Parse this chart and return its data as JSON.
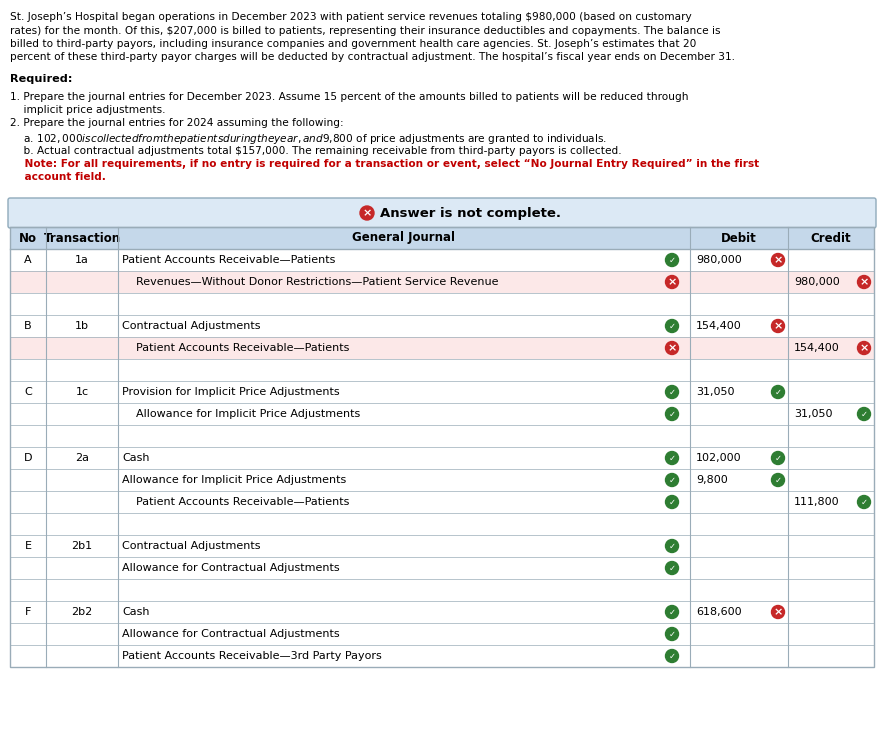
{
  "para_lines": [
    "St. Joseph’s Hospital began operations in December 2023 with patient service revenues totaling $980,000 (based on customary",
    "rates) for the month. Of this, $207,000 is billed to patients, representing their insurance deductibles and copayments. The balance is",
    "billed to third-party payors, including insurance companies and government health care agencies. St. Joseph’s estimates that 20",
    "percent of these third-party payor charges will be deducted by contractual adjustment. The hospital’s fiscal year ends on December 31."
  ],
  "req1_lines": [
    "1. Prepare the journal entries for December 2023. Assume 15 percent of the amounts billed to patients will be reduced through",
    "    implicit price adjustments."
  ],
  "req2_lines": [
    "2. Prepare the journal entries for 2024 assuming the following:",
    "    a. $102,000 is collected from the patients during the year, and $9,800 of price adjustments are granted to individuals.",
    "    b. Actual contractual adjustments total $157,000. The remaining receivable from third-party payors is collected."
  ],
  "note_lines": [
    "    Note: For all requirements, if no entry is required for a transaction or event, select “No Journal Entry Required” in the first",
    "    account field."
  ],
  "rows": [
    {
      "no": "A",
      "trans": "1a",
      "journal": "Patient Accounts Receivable—Patients",
      "debit": "980,000",
      "credit": "",
      "indent": false,
      "debit_icon": "x_red",
      "credit_icon": null,
      "journal_icon": "check_green",
      "row_bg": "white"
    },
    {
      "no": "",
      "trans": "",
      "journal": "Revenues—Without Donor Restrictions—Patient Service Revenue",
      "debit": "",
      "credit": "980,000",
      "indent": true,
      "debit_icon": null,
      "credit_icon": "x_red",
      "journal_icon": "x_red",
      "row_bg": "light_red"
    },
    {
      "no": "",
      "trans": "",
      "journal": "",
      "debit": "",
      "credit": "",
      "indent": false,
      "debit_icon": null,
      "credit_icon": null,
      "journal_icon": null,
      "row_bg": "white"
    },
    {
      "no": "B",
      "trans": "1b",
      "journal": "Contractual Adjustments",
      "debit": "154,400",
      "credit": "",
      "indent": false,
      "debit_icon": "x_red",
      "credit_icon": null,
      "journal_icon": "check_green",
      "row_bg": "white"
    },
    {
      "no": "",
      "trans": "",
      "journal": "Patient Accounts Receivable—Patients",
      "debit": "",
      "credit": "154,400",
      "indent": true,
      "debit_icon": null,
      "credit_icon": "x_red",
      "journal_icon": "x_red",
      "row_bg": "light_red"
    },
    {
      "no": "",
      "trans": "",
      "journal": "",
      "debit": "",
      "credit": "",
      "indent": false,
      "debit_icon": null,
      "credit_icon": null,
      "journal_icon": null,
      "row_bg": "white"
    },
    {
      "no": "C",
      "trans": "1c",
      "journal": "Provision for Implicit Price Adjustments",
      "debit": "31,050",
      "credit": "",
      "indent": false,
      "debit_icon": "check_green",
      "credit_icon": null,
      "journal_icon": "check_green",
      "row_bg": "white"
    },
    {
      "no": "",
      "trans": "",
      "journal": "Allowance for Implicit Price Adjustments",
      "debit": "",
      "credit": "31,050",
      "indent": true,
      "debit_icon": null,
      "credit_icon": "check_green",
      "journal_icon": "check_green",
      "row_bg": "white"
    },
    {
      "no": "",
      "trans": "",
      "journal": "",
      "debit": "",
      "credit": "",
      "indent": false,
      "debit_icon": null,
      "credit_icon": null,
      "journal_icon": null,
      "row_bg": "white"
    },
    {
      "no": "D",
      "trans": "2a",
      "journal": "Cash",
      "debit": "102,000",
      "credit": "",
      "indent": false,
      "debit_icon": "check_green",
      "credit_icon": null,
      "journal_icon": "check_green",
      "row_bg": "white"
    },
    {
      "no": "",
      "trans": "",
      "journal": "Allowance for Implicit Price Adjustments",
      "debit": "9,800",
      "credit": "",
      "indent": false,
      "debit_icon": "check_green",
      "credit_icon": null,
      "journal_icon": "check_green",
      "row_bg": "white"
    },
    {
      "no": "",
      "trans": "",
      "journal": "Patient Accounts Receivable—Patients",
      "debit": "",
      "credit": "111,800",
      "indent": true,
      "debit_icon": null,
      "credit_icon": "check_green",
      "journal_icon": "check_green",
      "row_bg": "white"
    },
    {
      "no": "",
      "trans": "",
      "journal": "",
      "debit": "",
      "credit": "",
      "indent": false,
      "debit_icon": null,
      "credit_icon": null,
      "journal_icon": null,
      "row_bg": "white"
    },
    {
      "no": "E",
      "trans": "2b1",
      "journal": "Contractual Adjustments",
      "debit": "",
      "credit": "",
      "indent": false,
      "debit_icon": null,
      "credit_icon": null,
      "journal_icon": "check_green",
      "row_bg": "white"
    },
    {
      "no": "",
      "trans": "",
      "journal": "Allowance for Contractual Adjustments",
      "debit": "",
      "credit": "",
      "indent": false,
      "debit_icon": null,
      "credit_icon": null,
      "journal_icon": "check_green",
      "row_bg": "white"
    },
    {
      "no": "",
      "trans": "",
      "journal": "",
      "debit": "",
      "credit": "",
      "indent": false,
      "debit_icon": null,
      "credit_icon": null,
      "journal_icon": null,
      "row_bg": "white"
    },
    {
      "no": "F",
      "trans": "2b2",
      "journal": "Cash",
      "debit": "618,600",
      "credit": "",
      "indent": false,
      "debit_icon": "x_red",
      "credit_icon": null,
      "journal_icon": "check_green",
      "row_bg": "white"
    },
    {
      "no": "",
      "trans": "",
      "journal": "Allowance for Contractual Adjustments",
      "debit": "",
      "credit": "",
      "indent": false,
      "debit_icon": null,
      "credit_icon": null,
      "journal_icon": "check_green",
      "row_bg": "white"
    },
    {
      "no": "",
      "trans": "",
      "journal": "Patient Accounts Receivable—3rd Party Payors",
      "debit": "",
      "credit": "",
      "indent": false,
      "debit_icon": null,
      "credit_icon": null,
      "journal_icon": "check_green",
      "row_bg": "white"
    }
  ],
  "colors": {
    "header_bg": "#c5d8ea",
    "light_red_bg": "#fce8e8",
    "banner_bg": "#dce9f5",
    "border": "#9aacb8",
    "text": "#000000",
    "note_red": "#c00000",
    "check_green": "#2e7d32",
    "x_red": "#c62828",
    "banner_border": "#8faabb"
  },
  "font_size_para": 7.6,
  "font_size_table": 8.0,
  "font_size_header": 8.5
}
